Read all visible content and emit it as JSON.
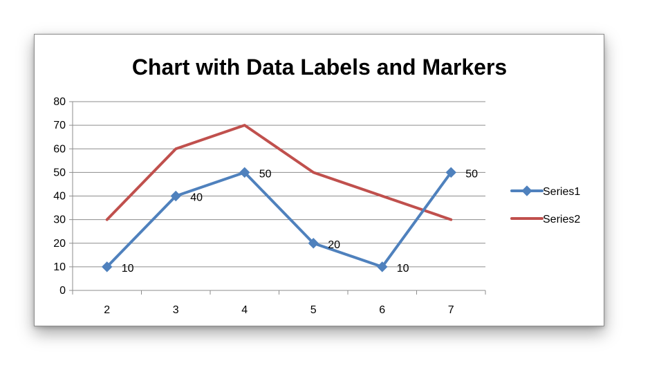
{
  "chart_data": {
    "type": "line",
    "title": "Chart with Data Labels and Markers",
    "xlabel": "",
    "ylabel": "",
    "categories": [
      "2",
      "3",
      "4",
      "5",
      "6",
      "7"
    ],
    "ylim": [
      0,
      80
    ],
    "yticks": [
      0,
      10,
      20,
      30,
      40,
      50,
      60,
      70,
      80
    ],
    "grid": true,
    "legend_position": "right",
    "series": [
      {
        "name": "Series1",
        "values": [
          10,
          40,
          50,
          20,
          10,
          50
        ],
        "color": "#4F81BD",
        "marker": "diamond",
        "data_labels": true
      },
      {
        "name": "Series2",
        "values": [
          30,
          60,
          70,
          50,
          40,
          30
        ],
        "color": "#C0504D",
        "marker": "none",
        "data_labels": false
      }
    ]
  }
}
